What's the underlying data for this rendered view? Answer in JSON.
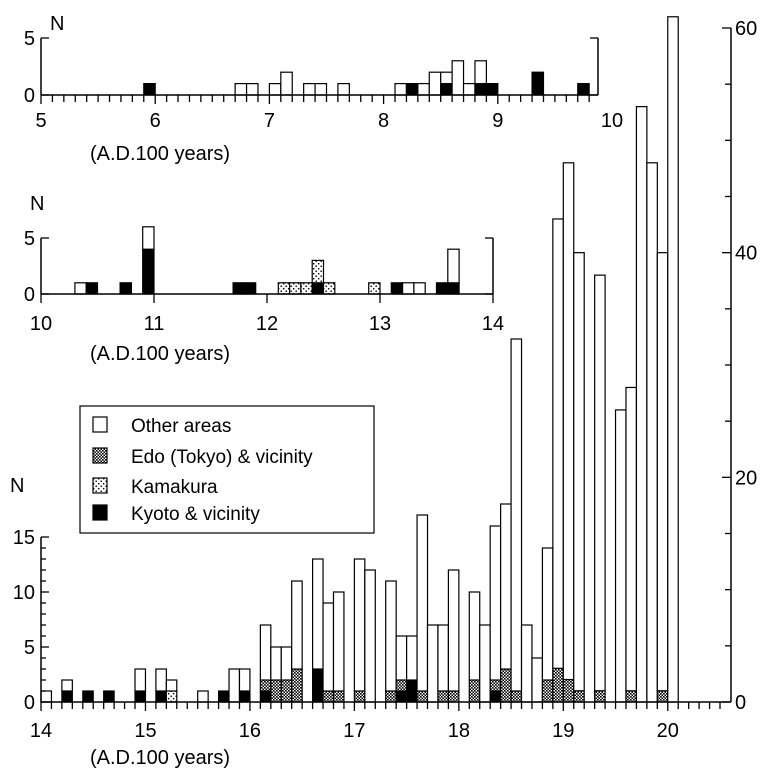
{
  "legend": {
    "items": [
      {
        "key": "other",
        "label": "Other areas"
      },
      {
        "key": "edo",
        "label": "Edo (Tokyo) & vicinity"
      },
      {
        "key": "kamakura",
        "label": "Kamakura"
      },
      {
        "key": "kyoto",
        "label": "Kyoto & vicinity"
      }
    ],
    "placement": "left, inside bottom panel"
  },
  "chart_data": [
    {
      "type": "bar",
      "stacked": true,
      "xlabel": "(A.D.100 years)",
      "ylabel": "N",
      "xlim": [
        5,
        10
      ],
      "ylim": [
        0,
        5
      ],
      "x_ticks": [
        "5",
        "6",
        "7",
        "8",
        "9",
        "10"
      ],
      "y_ticks": [
        "0",
        "5"
      ],
      "bin_width": 0.1,
      "bins": [
        {
          "x": 5.9,
          "kyoto": 1
        },
        {
          "x": 6.7,
          "other": 1
        },
        {
          "x": 6.8,
          "other": 1
        },
        {
          "x": 7.0,
          "other": 1
        },
        {
          "x": 7.1,
          "other": 2
        },
        {
          "x": 7.3,
          "other": 1
        },
        {
          "x": 7.4,
          "other": 1
        },
        {
          "x": 7.6,
          "other": 1
        },
        {
          "x": 8.1,
          "other": 1
        },
        {
          "x": 8.2,
          "kyoto": 1
        },
        {
          "x": 8.3,
          "other": 1
        },
        {
          "x": 8.4,
          "other": 2
        },
        {
          "x": 8.5,
          "kyoto": 1,
          "other": 1
        },
        {
          "x": 8.6,
          "other": 3
        },
        {
          "x": 8.7,
          "other": 1
        },
        {
          "x": 8.8,
          "kyoto": 1,
          "other": 2
        },
        {
          "x": 8.9,
          "kyoto": 1
        },
        {
          "x": 9.3,
          "kyoto": 2
        },
        {
          "x": 9.7,
          "kyoto": 1
        }
      ]
    },
    {
      "type": "bar",
      "stacked": true,
      "xlabel": "(A.D.100 years)",
      "ylabel": "N",
      "xlim": [
        10,
        14
      ],
      "ylim": [
        0,
        5
      ],
      "x_ticks": [
        "10",
        "11",
        "12",
        "13",
        "14"
      ],
      "y_ticks": [
        "0",
        "5"
      ],
      "bin_width": 0.1,
      "bins": [
        {
          "x": 10.3,
          "other": 1
        },
        {
          "x": 10.4,
          "kyoto": 1
        },
        {
          "x": 10.7,
          "kyoto": 1
        },
        {
          "x": 10.9,
          "kyoto": 4,
          "other": 2
        },
        {
          "x": 11.7,
          "kyoto": 1
        },
        {
          "x": 11.8,
          "kyoto": 1
        },
        {
          "x": 12.1,
          "kamakura": 1
        },
        {
          "x": 12.2,
          "kamakura": 1
        },
        {
          "x": 12.3,
          "kamakura": 1
        },
        {
          "x": 12.4,
          "kyoto": 1,
          "kamakura": 2
        },
        {
          "x": 12.5,
          "kamakura": 1
        },
        {
          "x": 12.9,
          "kamakura": 1
        },
        {
          "x": 13.1,
          "kyoto": 1
        },
        {
          "x": 13.2,
          "other": 1
        },
        {
          "x": 13.3,
          "other": 1
        },
        {
          "x": 13.5,
          "kyoto": 1
        },
        {
          "x": 13.6,
          "kyoto": 1,
          "other": 3
        }
      ]
    },
    {
      "type": "bar",
      "stacked": true,
      "xlabel": "(A.D.100 years)",
      "ylabel": "N",
      "xlim": [
        14,
        20.5
      ],
      "ylim_left": [
        0,
        15
      ],
      "y_ticks_left": [
        "0",
        "5",
        "10",
        "15"
      ],
      "ylim_right": [
        0,
        60
      ],
      "y_ticks_right": [
        "0",
        "20",
        "40",
        "60"
      ],
      "x_ticks": [
        "14",
        "15",
        "16",
        "17",
        "18",
        "19",
        "20"
      ],
      "bin_width": 0.1,
      "note": "bars for 18.9 onward are read on the right-hand axis",
      "bins": [
        {
          "x": 14.0,
          "other": 1
        },
        {
          "x": 14.2,
          "kyoto": 1,
          "other": 1
        },
        {
          "x": 14.4,
          "kyoto": 1
        },
        {
          "x": 14.6,
          "kyoto": 1
        },
        {
          "x": 14.9,
          "kyoto": 1,
          "other": 2
        },
        {
          "x": 15.1,
          "kyoto": 1,
          "other": 2
        },
        {
          "x": 15.2,
          "kamakura": 1,
          "other": 1
        },
        {
          "x": 15.5,
          "other": 1
        },
        {
          "x": 15.7,
          "kyoto": 1
        },
        {
          "x": 15.8,
          "other": 3
        },
        {
          "x": 15.9,
          "kyoto": 1,
          "other": 2
        },
        {
          "x": 16.1,
          "kyoto": 1,
          "edo": 1,
          "other": 5
        },
        {
          "x": 16.2,
          "edo": 2,
          "other": 3
        },
        {
          "x": 16.3,
          "edo": 2,
          "other": 3
        },
        {
          "x": 16.4,
          "edo": 3,
          "other": 8
        },
        {
          "x": 16.6,
          "kyoto": 3,
          "other": 10
        },
        {
          "x": 16.7,
          "edo": 1,
          "other": 8
        },
        {
          "x": 16.8,
          "edo": 1,
          "other": 9
        },
        {
          "x": 17.0,
          "edo": 1,
          "other": 12
        },
        {
          "x": 17.1,
          "other": 12
        },
        {
          "x": 17.3,
          "edo": 1,
          "other": 10
        },
        {
          "x": 17.4,
          "kyoto": 1,
          "edo": 1,
          "other": 4
        },
        {
          "x": 17.5,
          "kyoto": 2,
          "other": 4
        },
        {
          "x": 17.6,
          "edo": 1,
          "other": 16
        },
        {
          "x": 17.7,
          "other": 7
        },
        {
          "x": 17.8,
          "edo": 1,
          "other": 6
        },
        {
          "x": 17.9,
          "edo": 1,
          "other": 11
        },
        {
          "x": 18.1,
          "edo": 2,
          "other": 8
        },
        {
          "x": 18.2,
          "other": 7
        },
        {
          "x": 18.3,
          "kyoto": 1,
          "edo": 1,
          "other": 14
        },
        {
          "x": 18.4,
          "edo": 3,
          "other": 15
        },
        {
          "x": 18.5,
          "edo": 1,
          "other": 32
        },
        {
          "x": 18.6,
          "other": 7
        },
        {
          "x": 18.7,
          "other": 4
        },
        {
          "x": 18.8,
          "edo": 2,
          "other": 12
        },
        {
          "x": 18.9,
          "edo": 3,
          "other": 40,
          "axis": "right"
        },
        {
          "x": 19.0,
          "edo": 2,
          "other": 46,
          "axis": "right"
        },
        {
          "x": 19.1,
          "edo": 1,
          "other": 39,
          "axis": "right"
        },
        {
          "x": 19.3,
          "edo": 1,
          "other": 37,
          "axis": "right"
        },
        {
          "x": 19.5,
          "other": 26,
          "axis": "right"
        },
        {
          "x": 19.6,
          "edo": 1,
          "other": 27,
          "axis": "right"
        },
        {
          "x": 19.7,
          "other": 53,
          "axis": "right"
        },
        {
          "x": 19.8,
          "other": 48,
          "axis": "right"
        },
        {
          "x": 19.9,
          "edo": 1,
          "other": 39,
          "axis": "right"
        },
        {
          "x": 20.0,
          "other": 61,
          "axis": "right"
        }
      ]
    }
  ]
}
